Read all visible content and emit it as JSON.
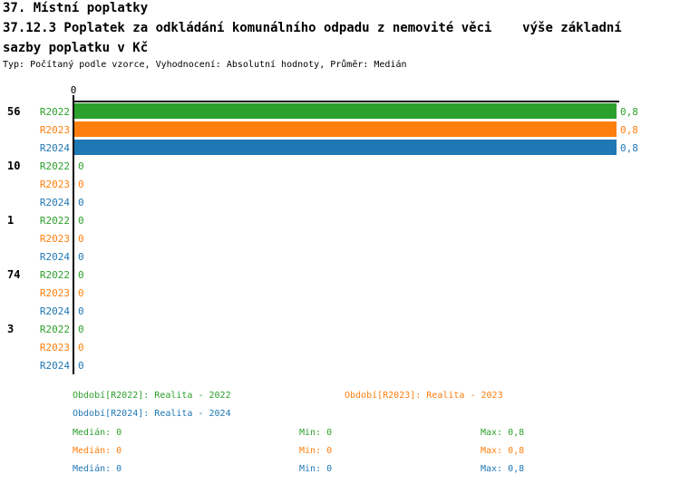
{
  "header": {
    "title_line1": "37. Místní poplatky",
    "title_line2": "37.12.3 Poplatek za odkládání komunálního odpadu z nemovité věci    výše základní",
    "title_line3": "sazby poplatku v Kč",
    "meta": "Typ: Počítaný podle vzorce, Vyhodnocení: Absolutní hodnoty, Průměr: Medián"
  },
  "colors": {
    "R2022": "#2ca02c",
    "R2023": "#ff7f0e",
    "R2024": "#1f77b4",
    "axis": "#000000"
  },
  "chart_data": {
    "type": "bar",
    "orientation": "horizontal",
    "title": "37.12.3 Poplatek za odkládání komunálního odpadu z nemovité věci - výše základní sazby poplatku v Kč",
    "categories": [
      "56",
      "10",
      "1",
      "74",
      "3"
    ],
    "series": [
      {
        "name": "R2022",
        "values": [
          0.8,
          0,
          0,
          0,
          0
        ],
        "value_labels": [
          "0,8",
          "0",
          "0",
          "0",
          "0"
        ]
      },
      {
        "name": "R2023",
        "values": [
          0.8,
          0,
          0,
          0,
          0
        ],
        "value_labels": [
          "0,8",
          "0",
          "0",
          "0",
          "0"
        ]
      },
      {
        "name": "R2024",
        "values": [
          0.8,
          0,
          0,
          0,
          0
        ],
        "value_labels": [
          "0,8",
          "0",
          "0",
          "0",
          "0"
        ]
      }
    ],
    "xlim": [
      0,
      0.8
    ],
    "zero_tick_label": "0",
    "grid": false,
    "legend_position": "bottom"
  },
  "legend": {
    "periods": [
      {
        "series": "R2022",
        "label": "Období[R2022]: Realita - 2022"
      },
      {
        "series": "R2023",
        "label": "Období[R2023]: Realita - 2023"
      },
      {
        "series": "R2024",
        "label": "Období[R2024]: Realita - 2024"
      }
    ],
    "stats": [
      {
        "series": "R2022",
        "median_label": "Medián: 0",
        "min_label": "Min: 0",
        "max_label": "Max: 0,8"
      },
      {
        "series": "R2023",
        "median_label": "Medián: 0",
        "min_label": "Min: 0",
        "max_label": "Max: 0,8"
      },
      {
        "series": "R2024",
        "median_label": "Medián: 0",
        "min_label": "Min: 0",
        "max_label": "Max: 0,8"
      }
    ]
  }
}
